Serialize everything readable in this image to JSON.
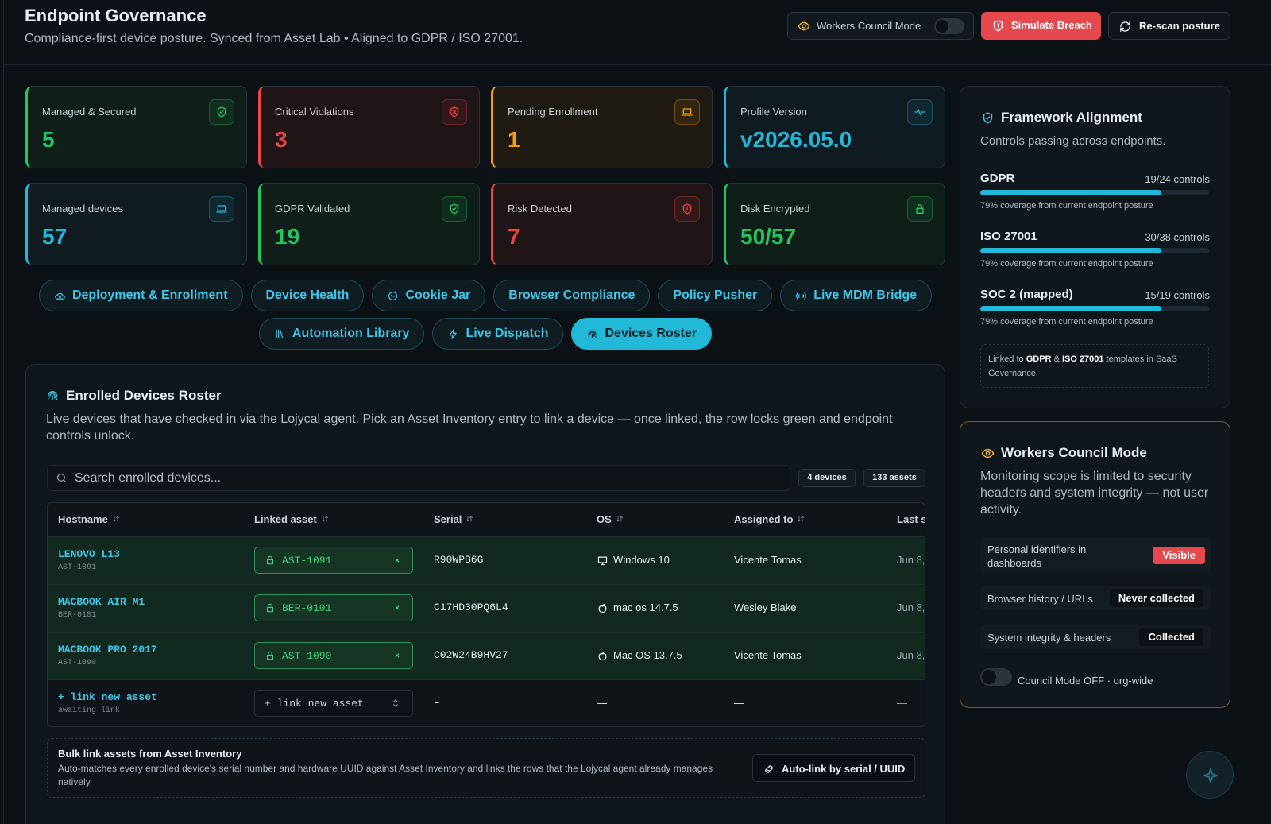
{
  "header": {
    "title": "Endpoint Governance",
    "subtitle": "Compliance-first device posture. Synced from Asset Lab • Aligned to GDPR / ISO 27001.",
    "actions": [
      "Workers Council Mode",
      "Simulate Breach",
      "Re-scan posture"
    ]
  },
  "stats": [
    {
      "label": "Managed & Secured",
      "value": 5
    },
    {
      "label": "Critical Violations",
      "value": 3
    },
    {
      "label": "Pending Enrollment",
      "value": 1
    },
    {
      "label": "Profile Version",
      "value": "v2026.05.0"
    },
    {
      "label": "Managed devices",
      "value": 57
    },
    {
      "label": "GDPR Validated",
      "value": 19
    },
    {
      "label": "Risk Detected",
      "value": 7
    },
    {
      "label": "Disk Encrypted",
      "value": "50/57"
    }
  ],
  "tabs": [
    "Deployment & Enrollment",
    "Device Health",
    "Cookie Jar",
    "Browser Compliance",
    "Policy Pusher",
    "Live MDM Bridge",
    "Automation Library",
    "Live Dispatch",
    "Devices Roster"
  ],
  "roster": {
    "title": "Enrolled Devices Roster",
    "description": "Live devices that have checked in via the Lojycal agent. Pick an Asset Inventory entry to link a device — once linked, the row locks green and endpoint controls unlock.",
    "search_placeholder": "Search enrolled devices...",
    "badges": [
      "4 devices",
      "133 assets"
    ],
    "columns": [
      "Hostname",
      "Linked asset",
      "Serial",
      "OS",
      "Assigned to",
      "Last s"
    ],
    "rows": [
      {
        "hostname": "LENOVO L13",
        "asset_id": "AST-1091",
        "linked_asset": "AST-1091",
        "serial": "R90WPB6G",
        "os": "Windows 10",
        "assigned_to": "Vicente Tomas",
        "last_seen": "Jun 8,"
      },
      {
        "hostname": "MACBOOK AIR M1",
        "asset_id": "BER-0101",
        "linked_asset": "BER-0101",
        "serial": "C17HD30PQ6L4",
        "os": "mac os 14.7.5",
        "assigned_to": "Wesley Blake",
        "last_seen": "Jun 8,"
      },
      {
        "hostname": "MACBOOK PRO 2017",
        "asset_id": "AST-1090",
        "linked_asset": "AST-1090",
        "serial": "C02W24B9HV27",
        "os": "Mac OS 13.7.5",
        "assigned_to": "Vicente Tomas",
        "last_seen": "Jun 8,"
      },
      {
        "hostname": "+ link new asset",
        "asset_id": "awaiting link",
        "linked_asset": "+ link new asset",
        "serial": "–",
        "os": "—",
        "assigned_to": "—",
        "last_seen": "—"
      }
    ],
    "bulk": {
      "title": "Bulk link assets from Asset Inventory",
      "description": "Auto-matches every enrolled device's serial number and hardware UUID against Asset Inventory and links the rows that the Lojycal agent already manages natively.",
      "action": "Auto-link by serial / UUID"
    }
  },
  "framework": {
    "title": "Framework Alignment",
    "subtitle": "Controls passing across endpoints.",
    "items": [
      {
        "name": "GDPR",
        "controls": "19/24 controls",
        "coverage": 79,
        "note": "79% coverage from current endpoint posture"
      },
      {
        "name": "ISO 27001",
        "controls": "30/38 controls",
        "coverage": 79,
        "note": "79% coverage from current endpoint posture"
      },
      {
        "name": "SOC 2 (mapped)",
        "controls": "15/19 controls",
        "coverage": 79,
        "note": "79% coverage from current endpoint posture"
      }
    ],
    "footnote": [
      "Linked to ",
      "GDPR",
      " & ",
      "ISO 27001",
      " templates in SaaS Governance."
    ]
  },
  "council": {
    "title": "Workers Council Mode",
    "description": "Monitoring scope is limited to security headers and system integrity — not user activity.",
    "items": [
      {
        "label": "Personal identifiers in dashboards",
        "status": "Visible"
      },
      {
        "label": "Browser history / URLs",
        "status": "Never collected"
      },
      {
        "label": "System integrity & headers",
        "status": "Collected"
      }
    ],
    "toggle": "Council Mode OFF · org-wide"
  }
}
